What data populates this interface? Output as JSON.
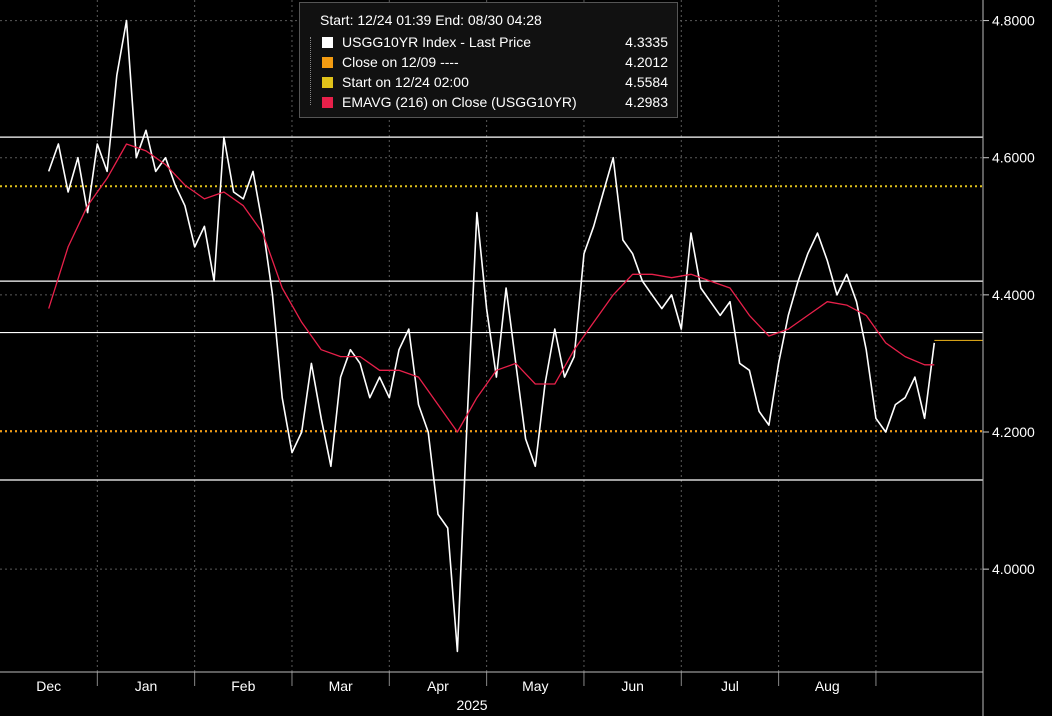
{
  "legend": {
    "header": "Start: 12/24 01:39 End: 08/30 04:28",
    "items": [
      {
        "label": "USGG10YR Index - Last Price",
        "value": "4.3335",
        "color": "#ffffff"
      },
      {
        "label": "Close on 12/09 ----",
        "value": "4.2012",
        "color": "#f39c12"
      },
      {
        "label": "Start on 12/24 02:00",
        "value": "4.5584",
        "color": "#e0c21a"
      },
      {
        "label": "EMAVG (216)  on Close (USGG10YR)",
        "value": "4.2983",
        "color": "#e8204a"
      }
    ]
  },
  "chart_data": {
    "type": "line",
    "ylim": [
      3.85,
      4.83
    ],
    "yticks": [
      "4.8000",
      "4.6000",
      "4.4000",
      "4.2000",
      "4.0000"
    ],
    "ytick_values": [
      4.8,
      4.6,
      4.4,
      4.2,
      4.0
    ],
    "xticks": [
      "Dec",
      "Jan",
      "Feb",
      "Mar",
      "Apr",
      "May",
      "Jun",
      "Jul",
      "Aug"
    ],
    "year_label": "2025",
    "grid": true,
    "hlines": [
      {
        "value": 4.63,
        "color": "#ffffff",
        "style": "solid"
      },
      {
        "value": 4.42,
        "color": "#ffffff",
        "style": "solid"
      },
      {
        "value": 4.345,
        "color": "#ffffff",
        "style": "solid"
      },
      {
        "value": 4.13,
        "color": "#ffffff",
        "style": "solid"
      },
      {
        "value": 4.5584,
        "color": "#e0c21a",
        "style": "dotted"
      },
      {
        "value": 4.2012,
        "color": "#f39c12",
        "style": "dotted"
      }
    ],
    "last_value": 4.3335,
    "series": [
      {
        "name": "USGG10YR Index - Last Price",
        "color": "#ffffff",
        "x": [
          0,
          0.1,
          0.2,
          0.3,
          0.4,
          0.5,
          0.6,
          0.7,
          0.8,
          0.9,
          1.0,
          1.1,
          1.2,
          1.3,
          1.4,
          1.5,
          1.6,
          1.7,
          1.8,
          1.9,
          2.0,
          2.1,
          2.2,
          2.3,
          2.4,
          2.5,
          2.6,
          2.7,
          2.8,
          2.9,
          3.0,
          3.1,
          3.2,
          3.3,
          3.4,
          3.5,
          3.6,
          3.7,
          3.8,
          3.9,
          4.0,
          4.1,
          4.2,
          4.3,
          4.4,
          4.5,
          4.6,
          4.7,
          4.8,
          4.9,
          5.0,
          5.1,
          5.2,
          5.3,
          5.4,
          5.5,
          5.6,
          5.7,
          5.8,
          5.9,
          6.0,
          6.1,
          6.2,
          6.3,
          6.4,
          6.5,
          6.6,
          6.7,
          6.8,
          6.9,
          7.0,
          7.1,
          7.2,
          7.3,
          7.4,
          7.5,
          7.6,
          7.7,
          7.8,
          7.9,
          8.0,
          8.1,
          8.2,
          8.3,
          8.4,
          8.5,
          8.6,
          8.7,
          8.8,
          8.9,
          9.0,
          9.1
        ],
        "y": [
          4.58,
          4.62,
          4.55,
          4.6,
          4.52,
          4.62,
          4.58,
          4.72,
          4.8,
          4.6,
          4.64,
          4.58,
          4.6,
          4.56,
          4.53,
          4.47,
          4.5,
          4.42,
          4.63,
          4.55,
          4.54,
          4.58,
          4.5,
          4.4,
          4.25,
          4.17,
          4.2,
          4.3,
          4.22,
          4.15,
          4.28,
          4.32,
          4.3,
          4.25,
          4.28,
          4.25,
          4.32,
          4.35,
          4.24,
          4.2,
          4.08,
          4.06,
          3.88,
          4.22,
          4.52,
          4.38,
          4.28,
          4.41,
          4.3,
          4.19,
          4.15,
          4.27,
          4.35,
          4.28,
          4.31,
          4.46,
          4.5,
          4.55,
          4.6,
          4.48,
          4.46,
          4.42,
          4.4,
          4.38,
          4.4,
          4.35,
          4.49,
          4.41,
          4.39,
          4.37,
          4.39,
          4.3,
          4.29,
          4.23,
          4.21,
          4.3,
          4.37,
          4.42,
          4.46,
          4.49,
          4.45,
          4.4,
          4.43,
          4.39,
          4.32,
          4.22,
          4.2,
          4.24,
          4.25,
          4.28,
          4.22,
          4.33
        ]
      },
      {
        "name": "EMAVG (216)  on Close (USGG10YR)",
        "color": "#e8204a",
        "x": [
          0,
          0.2,
          0.4,
          0.6,
          0.8,
          0.9,
          1.0,
          1.1,
          1.2,
          1.4,
          1.6,
          1.8,
          2.0,
          2.2,
          2.4,
          2.6,
          2.8,
          3.0,
          3.2,
          3.4,
          3.6,
          3.8,
          4.0,
          4.2,
          4.4,
          4.6,
          4.8,
          5.0,
          5.2,
          5.4,
          5.6,
          5.8,
          6.0,
          6.2,
          6.4,
          6.6,
          6.8,
          7.0,
          7.2,
          7.4,
          7.6,
          7.8,
          8.0,
          8.2,
          8.4,
          8.6,
          8.8,
          9.0,
          9.1
        ],
        "y": [
          4.38,
          4.47,
          4.53,
          4.57,
          4.62,
          4.615,
          4.61,
          4.6,
          4.59,
          4.56,
          4.54,
          4.55,
          4.53,
          4.49,
          4.41,
          4.36,
          4.32,
          4.31,
          4.31,
          4.29,
          4.29,
          4.28,
          4.24,
          4.2,
          4.25,
          4.29,
          4.3,
          4.27,
          4.27,
          4.32,
          4.36,
          4.4,
          4.43,
          4.43,
          4.425,
          4.43,
          4.42,
          4.41,
          4.37,
          4.34,
          4.35,
          4.37,
          4.39,
          4.385,
          4.37,
          4.33,
          4.31,
          4.298,
          4.298
        ]
      }
    ]
  }
}
